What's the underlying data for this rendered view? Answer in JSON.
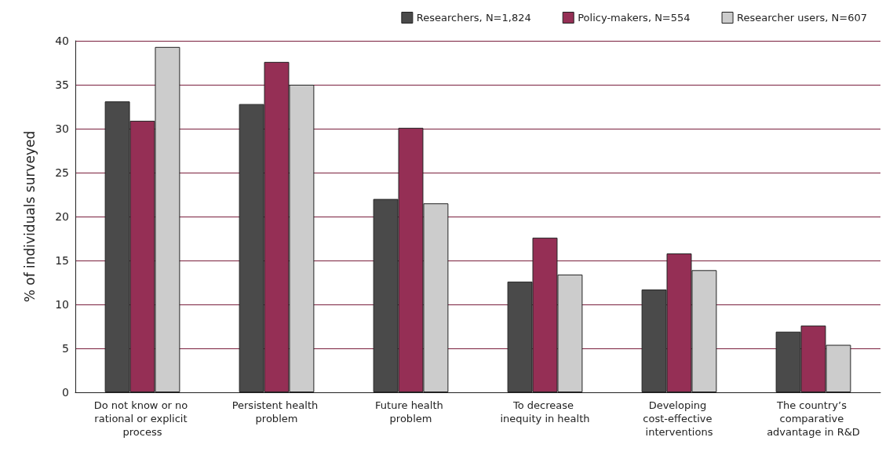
{
  "chart_data": {
    "type": "bar",
    "ylabel": "% of individuals surveyed",
    "categories": [
      "Do not know or no rational or explicit process",
      "Persistent health problem",
      "Future health problem",
      "To decrease inequity in health",
      "Developing cost-effective interventions",
      "The country’s comparative advantage in R&D"
    ],
    "series": [
      {
        "name": "Researchers, N=1,824",
        "color": "#4a4a4a",
        "values": [
          33.1,
          32.8,
          22.0,
          12.6,
          11.7,
          6.9
        ]
      },
      {
        "name": "Policy-makers, N=554",
        "color": "#952f55",
        "values": [
          30.9,
          37.6,
          30.1,
          17.6,
          15.8,
          7.6
        ]
      },
      {
        "name": "Researcher users, N=607",
        "color": "#cccccc",
        "values": [
          39.3,
          35.0,
          21.5,
          13.4,
          13.9,
          5.4
        ]
      }
    ],
    "ylim": [
      0,
      40
    ],
    "yticks": [
      0,
      5,
      10,
      15,
      20,
      25,
      30,
      35,
      40
    ],
    "grid": "y",
    "legend": "top right"
  }
}
